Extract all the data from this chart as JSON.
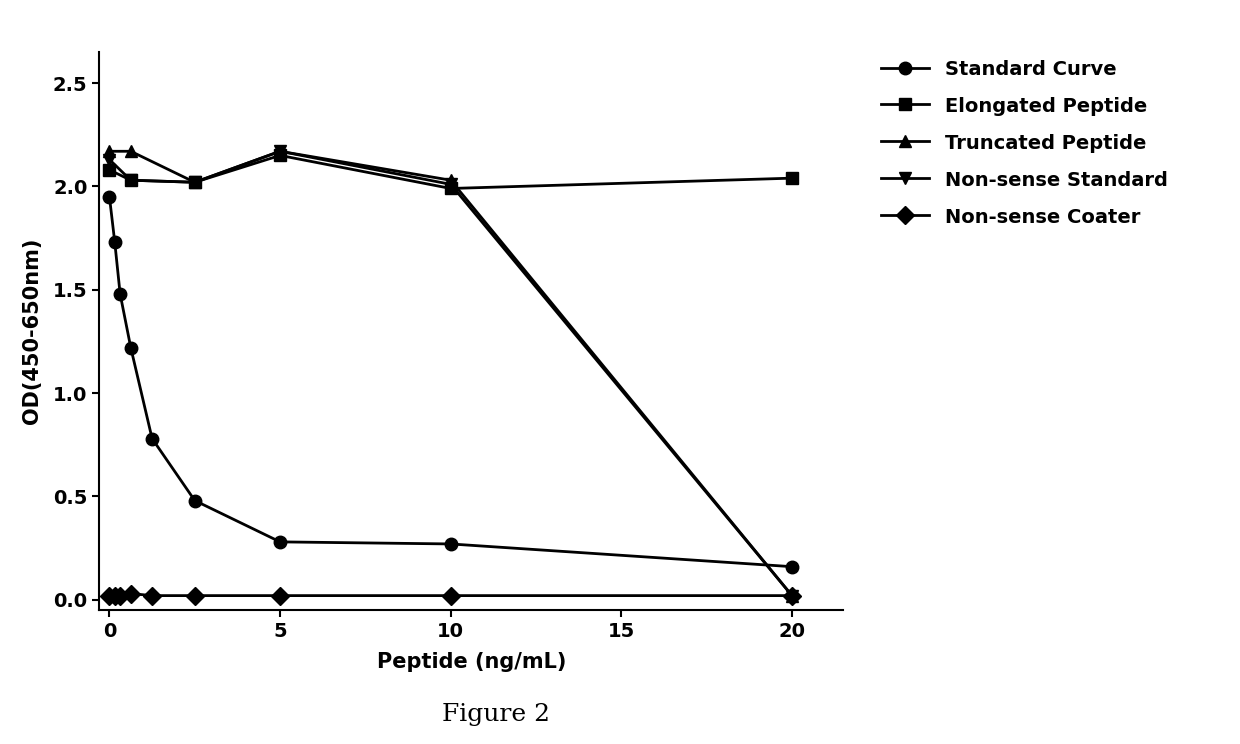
{
  "standard_curve_x": [
    0.0,
    0.156,
    0.313,
    0.625,
    1.25,
    2.5,
    5.0,
    10.0,
    20.0
  ],
  "standard_curve_y": [
    1.95,
    1.73,
    1.48,
    1.22,
    0.78,
    0.48,
    0.28,
    0.27,
    0.16
  ],
  "elongated_x": [
    0.0,
    0.625,
    2.5,
    5.0,
    10.0,
    20.0
  ],
  "elongated_y": [
    2.08,
    2.03,
    2.02,
    2.15,
    1.99,
    2.04
  ],
  "truncated_x": [
    0.0,
    0.625,
    2.5,
    5.0,
    10.0,
    20.0
  ],
  "truncated_y": [
    2.17,
    2.17,
    2.02,
    2.17,
    2.03,
    0.02
  ],
  "nonsense_std_x": [
    0.0,
    0.625,
    2.5,
    5.0,
    10.0,
    20.0
  ],
  "nonsense_std_y": [
    2.13,
    2.03,
    2.02,
    2.17,
    2.01,
    0.02
  ],
  "nonsense_coater_x": [
    0.0,
    0.156,
    0.313,
    0.625,
    1.25,
    2.5,
    5.0,
    10.0,
    20.0
  ],
  "nonsense_coater_y": [
    0.02,
    0.02,
    0.02,
    0.03,
    0.02,
    0.02,
    0.02,
    0.02,
    0.02
  ],
  "xlabel": "Peptide (ng/mL)",
  "ylabel": "OD(450-650nm)",
  "figure_label": "Figure 2",
  "xlim": [
    -0.3,
    21.5
  ],
  "ylim": [
    -0.05,
    2.65
  ],
  "yticks": [
    0.0,
    0.5,
    1.0,
    1.5,
    2.0,
    2.5
  ],
  "xticks": [
    0,
    5,
    10,
    15,
    20
  ],
  "legend_labels": [
    "Standard Curve",
    "Elongated Peptide",
    "Truncated Peptide",
    "Non-sense Standard",
    "Non-sense Coater"
  ],
  "color": "#000000",
  "background_color": "#ffffff",
  "figure_label_fontsize": 18,
  "label_fontsize": 15,
  "tick_fontsize": 14,
  "legend_fontsize": 14,
  "linewidth": 2.0,
  "markersize": 9
}
